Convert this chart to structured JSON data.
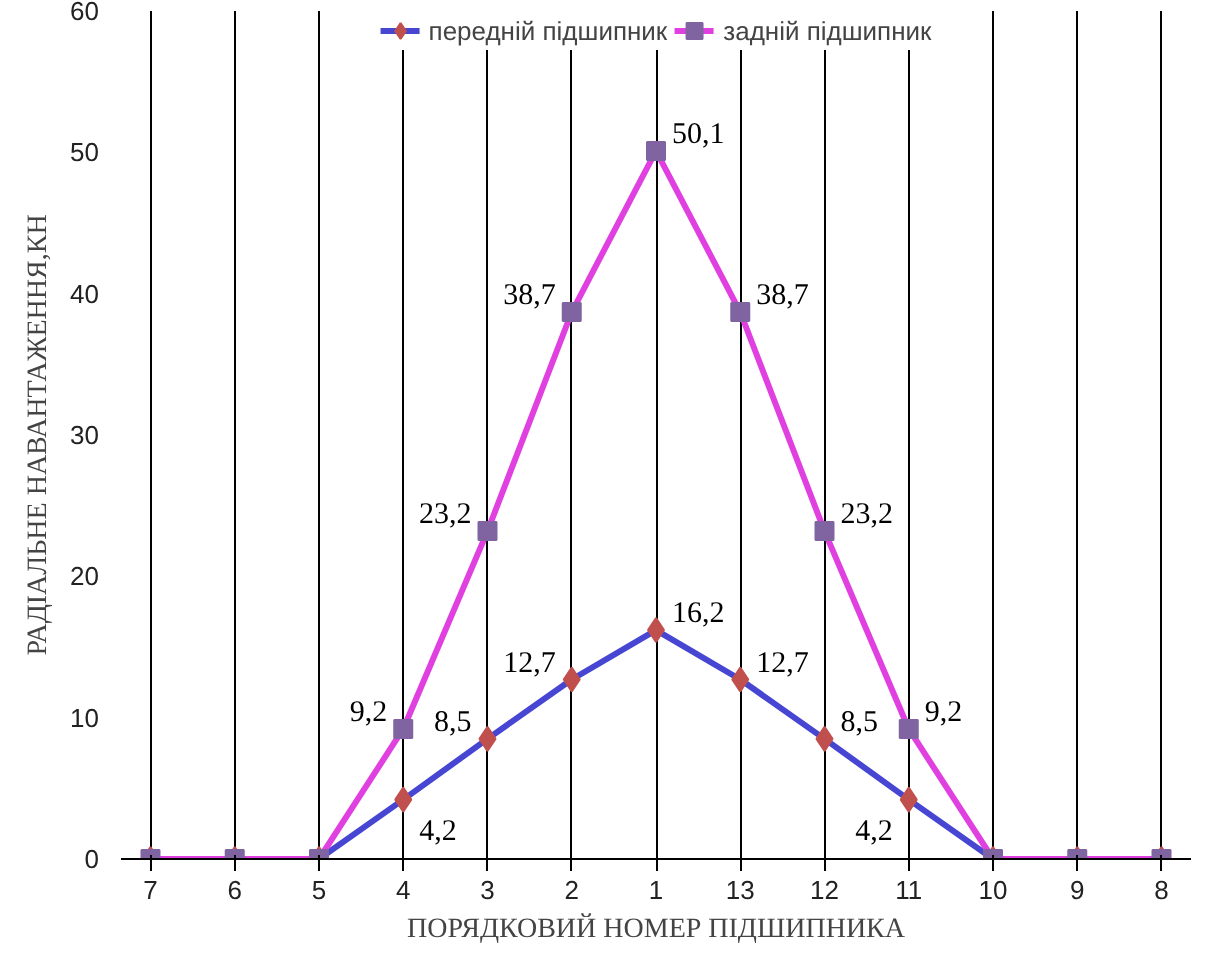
{
  "chart_data": {
    "type": "line",
    "xlabel": "ПОРЯДКОВИЙ НОМЕР ПІДШИПНИКА",
    "ylabel": "РАДІАЛЬНЕ НАВАНТАЖЕННЯ,КН",
    "categories": [
      "7",
      "6",
      "5",
      "4",
      "3",
      "2",
      "1",
      "13",
      "12",
      "11",
      "10",
      "9",
      "8"
    ],
    "series": [
      {
        "name": "передній підшипник",
        "color": "#4646d2",
        "colors": [
          "#c0504d",
          "#c0504d",
          "#c0504d",
          "#c0504d",
          "#c0504d",
          "#c0504d",
          "#c0504d",
          "#c0504d",
          "#c0504d",
          "#c0504d",
          "#c0504d",
          "#c0504d",
          "#c0504d"
        ],
        "marker": "diamond",
        "values": [
          0,
          0,
          0,
          4.2,
          8.5,
          12.7,
          16.2,
          12.7,
          8.5,
          4.2,
          0,
          0,
          0
        ],
        "value_labels": [
          null,
          null,
          null,
          "4,2",
          "8,5",
          "12,7",
          "16,2",
          "12,7",
          "8,5",
          "4,2",
          null,
          null,
          null
        ]
      },
      {
        "name": "задній підшипник",
        "color": "#e040e0",
        "colors": [
          "#8064a2",
          "#8064a2",
          "#8064a2",
          "#8064a2",
          "#8064a2",
          "#8064a2",
          "#8064a2",
          "#8064a2",
          "#8064a2",
          "#8064a2",
          "#8064a2",
          "#8064a2",
          "#8064a2"
        ],
        "marker": "square",
        "values": [
          0,
          0,
          0,
          9.2,
          23.2,
          38.7,
          50.1,
          38.7,
          23.2,
          9.2,
          0,
          0,
          0
        ],
        "value_labels": [
          null,
          null,
          null,
          "9,2",
          "23,2",
          "38,7",
          "50,1",
          "38,7",
          "23,2",
          "9,2",
          null,
          null,
          null
        ]
      }
    ],
    "ylim": [
      0,
      60
    ],
    "yticks": [
      0,
      10,
      20,
      30,
      40,
      50,
      60
    ],
    "grid": "x",
    "legend": "top",
    "line_style": "solid"
  }
}
